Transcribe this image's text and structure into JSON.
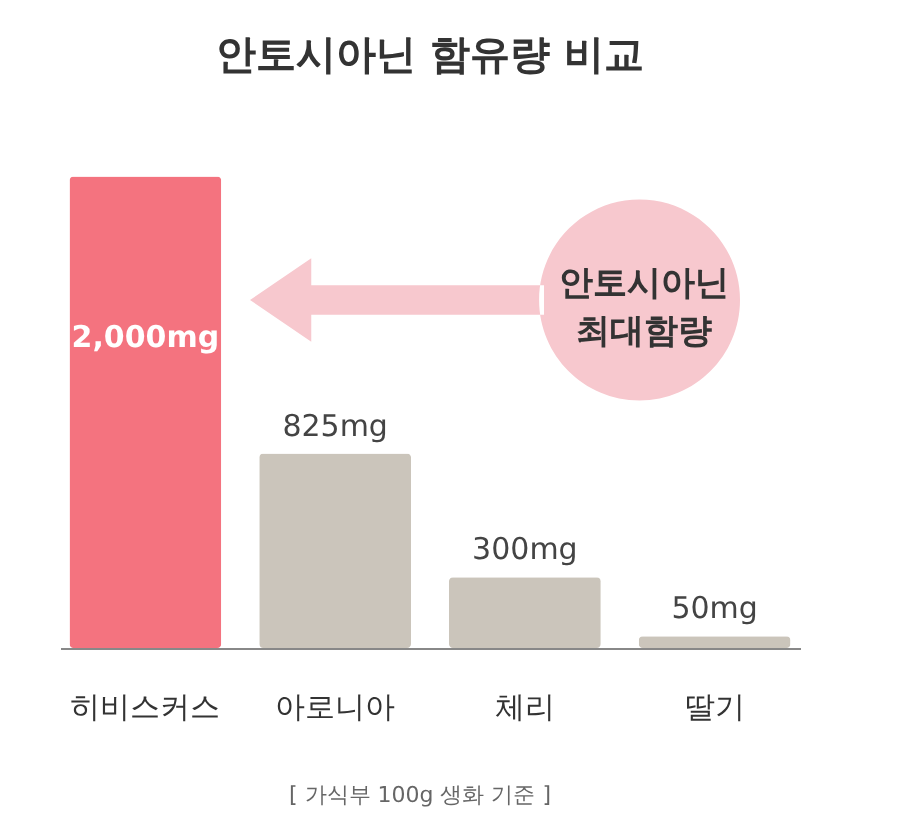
{
  "chart_data": {
    "type": "bar",
    "title": "안토시아닌 함유량 비교",
    "categories": [
      "히비스커스",
      "아로니아",
      "체리",
      "딸기"
    ],
    "values": [
      2000,
      825,
      300,
      50
    ],
    "value_labels": [
      "2,000mg",
      "825mg",
      "300mg",
      "50mg"
    ],
    "colors": [
      "#f4737f",
      "#cbc5bb",
      "#cbc5bb",
      "#cbc5bb"
    ],
    "annotations": [
      "안토시아닌 최대함량",
      "[ 가식부 100g 생화 기준 ]"
    ],
    "grid": false
  }
}
